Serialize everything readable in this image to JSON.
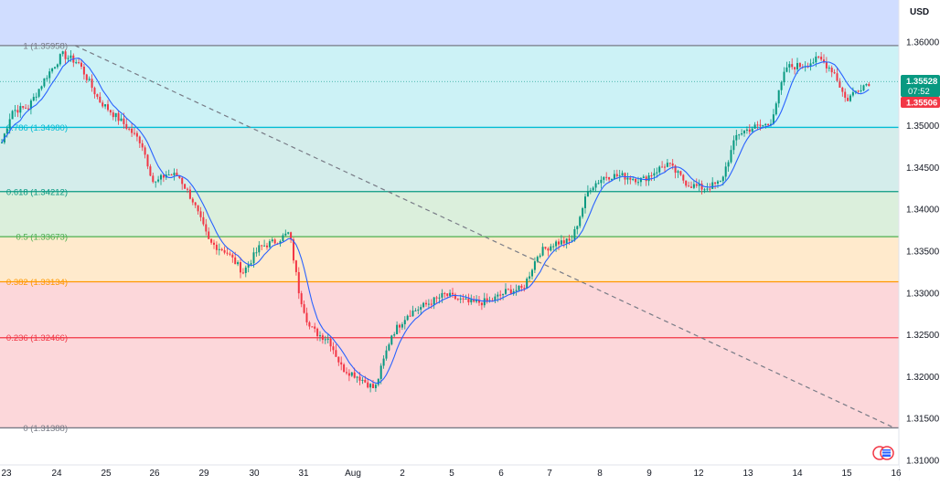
{
  "chart_data": {
    "type": "candlestick",
    "currency": "USD",
    "x_tick_labels": [
      "23",
      "24",
      "25",
      "26",
      "29",
      "30",
      "31",
      "Aug",
      "2",
      "5",
      "6",
      "7",
      "8",
      "9",
      "12",
      "13",
      "14",
      "15",
      "16"
    ],
    "y_ticks": [
      "1.36000",
      "1.35500",
      "1.35000",
      "1.34500",
      "1.34000",
      "1.33500",
      "1.33000",
      "1.32500",
      "1.32000",
      "1.31500",
      "1.31000"
    ],
    "ylim": [
      1.3092,
      1.364
    ],
    "current_price": "1.35528",
    "countdown": "07:52",
    "bid_price": "1.35506",
    "fibonacci": [
      {
        "level": "1",
        "price": "1.35958",
        "color": "#787b86",
        "fill": "#b2b5be"
      },
      {
        "level": "0.786",
        "price": "1.34980",
        "color": "#00bcd4",
        "fill": "#00bcd4"
      },
      {
        "level": "0.618",
        "price": "1.34212",
        "color": "#089981",
        "fill": "#26a69a"
      },
      {
        "level": "0.5",
        "price": "1.33673",
        "color": "#4caf50",
        "fill": "#4caf50"
      },
      {
        "level": "0.382",
        "price": "1.33134",
        "color": "#ff9800",
        "fill": "#ff9800"
      },
      {
        "level": "0.236",
        "price": "1.32466",
        "color": "#f23645",
        "fill": "#f23645"
      },
      {
        "level": "0",
        "price": "1.31388",
        "color": "#787b86",
        "fill": "#f23645"
      }
    ],
    "trend_line": {
      "from": [
        "24",
        1.35958
      ],
      "to": [
        "16",
        1.31388
      ]
    },
    "price_path": [
      [
        "23",
        1.348
      ],
      [
        "23",
        1.3518
      ],
      [
        "23",
        1.3522
      ],
      [
        "24",
        1.3558
      ],
      [
        "24",
        1.3585
      ],
      [
        "24",
        1.3575
      ],
      [
        "25",
        1.353
      ],
      [
        "25",
        1.3502
      ],
      [
        "26",
        1.348
      ],
      [
        "26",
        1.343
      ],
      [
        "26",
        1.3442
      ],
      [
        "26",
        1.344
      ],
      [
        "29",
        1.341
      ],
      [
        "29",
        1.336
      ],
      [
        "29",
        1.335
      ],
      [
        "30",
        1.3325
      ],
      [
        "30",
        1.3355
      ],
      [
        "30",
        1.3362
      ],
      [
        "31",
        1.3372
      ],
      [
        "31",
        1.33
      ],
      [
        "31",
        1.326
      ],
      [
        "31",
        1.325
      ],
      [
        "31",
        1.3245
      ],
      [
        "Aug",
        1.321
      ],
      [
        "Aug",
        1.32
      ],
      [
        "Aug",
        1.3185
      ],
      [
        "2",
        1.325
      ],
      [
        "2",
        1.3275
      ],
      [
        "2",
        1.3285
      ],
      [
        "5",
        1.3298
      ],
      [
        "5",
        1.3288
      ],
      [
        "6",
        1.329
      ],
      [
        "6",
        1.3302
      ],
      [
        "6",
        1.3305
      ],
      [
        "7",
        1.3348
      ],
      [
        "7",
        1.336
      ],
      [
        "7",
        1.3362
      ],
      [
        "8",
        1.3425
      ],
      [
        "8",
        1.344
      ],
      [
        "8",
        1.344
      ],
      [
        "9",
        1.3435
      ],
      [
        "9",
        1.3455
      ],
      [
        "12",
        1.343
      ],
      [
        "12",
        1.3425
      ],
      [
        "12",
        1.3432
      ],
      [
        "13",
        1.349
      ],
      [
        "13",
        1.3498
      ],
      [
        "13",
        1.3502
      ],
      [
        "14",
        1.357
      ],
      [
        "14",
        1.3572
      ],
      [
        "14",
        1.358
      ],
      [
        "15",
        1.3565
      ],
      [
        "15",
        1.353
      ],
      [
        "15",
        1.3545
      ],
      [
        "15",
        1.3553
      ]
    ]
  }
}
